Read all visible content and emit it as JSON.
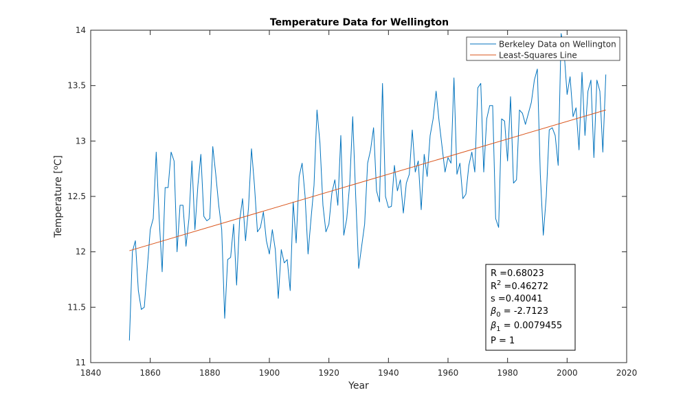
{
  "chart_data": {
    "type": "line",
    "title": "Temperature Data for Wellington",
    "xlabel": "Year",
    "ylabel_base": "Temperature [",
    "ylabel_sup": "o",
    "ylabel_unit": "C]",
    "xlim": [
      1840,
      2020
    ],
    "ylim": [
      11,
      14
    ],
    "xticks": [
      1840,
      1860,
      1880,
      1900,
      1920,
      1940,
      1960,
      1980,
      2000,
      2020
    ],
    "yticks": [
      11,
      11.5,
      12,
      12.5,
      13,
      13.5,
      14
    ],
    "grid": false,
    "legend_position": "top-right",
    "series": [
      {
        "name": "Berkeley Data on Wellington",
        "color": "#0072BD",
        "x": [
          1853,
          1854,
          1855,
          1856,
          1857,
          1858,
          1859,
          1860,
          1861,
          1862,
          1863,
          1864,
          1865,
          1866,
          1867,
          1868,
          1869,
          1870,
          1871,
          1872,
          1873,
          1874,
          1875,
          1876,
          1877,
          1878,
          1879,
          1880,
          1881,
          1882,
          1883,
          1884,
          1885,
          1886,
          1887,
          1888,
          1889,
          1890,
          1891,
          1892,
          1893,
          1894,
          1895,
          1896,
          1897,
          1898,
          1899,
          1900,
          1901,
          1902,
          1903,
          1904,
          1905,
          1906,
          1907,
          1908,
          1909,
          1910,
          1911,
          1912,
          1913,
          1914,
          1915,
          1916,
          1917,
          1918,
          1919,
          1920,
          1921,
          1922,
          1923,
          1924,
          1925,
          1926,
          1927,
          1928,
          1929,
          1930,
          1931,
          1932,
          1933,
          1934,
          1935,
          1936,
          1937,
          1938,
          1939,
          1940,
          1941,
          1942,
          1943,
          1944,
          1945,
          1946,
          1947,
          1948,
          1949,
          1950,
          1951,
          1952,
          1953,
          1954,
          1955,
          1956,
          1957,
          1958,
          1959,
          1960,
          1961,
          1962,
          1963,
          1964,
          1965,
          1966,
          1967,
          1968,
          1969,
          1970,
          1971,
          1972,
          1973,
          1974,
          1975,
          1976,
          1977,
          1978,
          1979,
          1980,
          1981,
          1982,
          1983,
          1984,
          1985,
          1986,
          1987,
          1988,
          1989,
          1990,
          1991,
          1992,
          1993,
          1994,
          1995,
          1996,
          1997,
          1998,
          1999,
          2000,
          2001,
          2002,
          2003,
          2004,
          2005,
          2006,
          2007,
          2008,
          2009,
          2010,
          2011,
          2012,
          2013
        ],
        "y": [
          11.2,
          12.0,
          12.1,
          11.65,
          11.48,
          11.5,
          11.85,
          12.2,
          12.3,
          12.9,
          12.3,
          11.82,
          12.58,
          12.58,
          12.9,
          12.82,
          12.0,
          12.42,
          12.42,
          12.05,
          12.3,
          12.82,
          12.2,
          12.6,
          12.88,
          12.32,
          12.28,
          12.3,
          12.95,
          12.7,
          12.42,
          12.2,
          11.4,
          11.93,
          11.95,
          12.25,
          11.7,
          12.28,
          12.48,
          12.1,
          12.4,
          12.93,
          12.6,
          12.18,
          12.22,
          12.36,
          12.1,
          11.98,
          12.2,
          12.02,
          11.58,
          12.02,
          11.9,
          11.93,
          11.65,
          12.45,
          12.08,
          12.68,
          12.8,
          12.5,
          11.98,
          12.3,
          12.6,
          13.28,
          12.98,
          12.42,
          12.18,
          12.25,
          12.53,
          12.65,
          12.42,
          13.05,
          12.15,
          12.3,
          12.62,
          13.22,
          12.5,
          11.85,
          12.05,
          12.25,
          12.8,
          12.92,
          13.12,
          12.55,
          12.45,
          13.52,
          12.5,
          12.4,
          12.41,
          12.78,
          12.55,
          12.65,
          12.35,
          12.62,
          12.7,
          13.1,
          12.72,
          12.82,
          12.38,
          12.88,
          12.68,
          13.05,
          13.2,
          13.45,
          13.18,
          12.95,
          12.72,
          12.85,
          12.8,
          13.57,
          12.7,
          12.8,
          12.48,
          12.52,
          12.78,
          12.9,
          12.72,
          13.48,
          13.52,
          12.72,
          13.2,
          13.32,
          13.32,
          12.3,
          12.22,
          13.2,
          13.18,
          12.82,
          13.4,
          12.62,
          12.65,
          13.28,
          13.25,
          13.15,
          13.25,
          13.35,
          13.55,
          13.65,
          12.7,
          12.15,
          12.5,
          13.1,
          13.12,
          13.05,
          12.78,
          13.97,
          13.8,
          13.42,
          13.58,
          13.22,
          13.3,
          12.92,
          13.62,
          13.05,
          13.45,
          13.55,
          12.85,
          13.55,
          13.45,
          12.9,
          13.6
        ]
      },
      {
        "name": "Least-Squares Line",
        "color": "#D95319",
        "x": [
          1853,
          2013
        ],
        "y": [
          12.01,
          13.28
        ]
      }
    ],
    "stats": [
      {
        "base": "R =0.68023"
      },
      {
        "base": "R",
        "sup": "2",
        "rest": " =0.46272"
      },
      {
        "base": "s =0.40041"
      },
      {
        "greek": "β",
        "sub": "0",
        "rest": " = -2.7123"
      },
      {
        "greek": "β",
        "sub": "1",
        "rest": " = 0.0079455"
      },
      {
        "base": "P = 1"
      }
    ]
  }
}
